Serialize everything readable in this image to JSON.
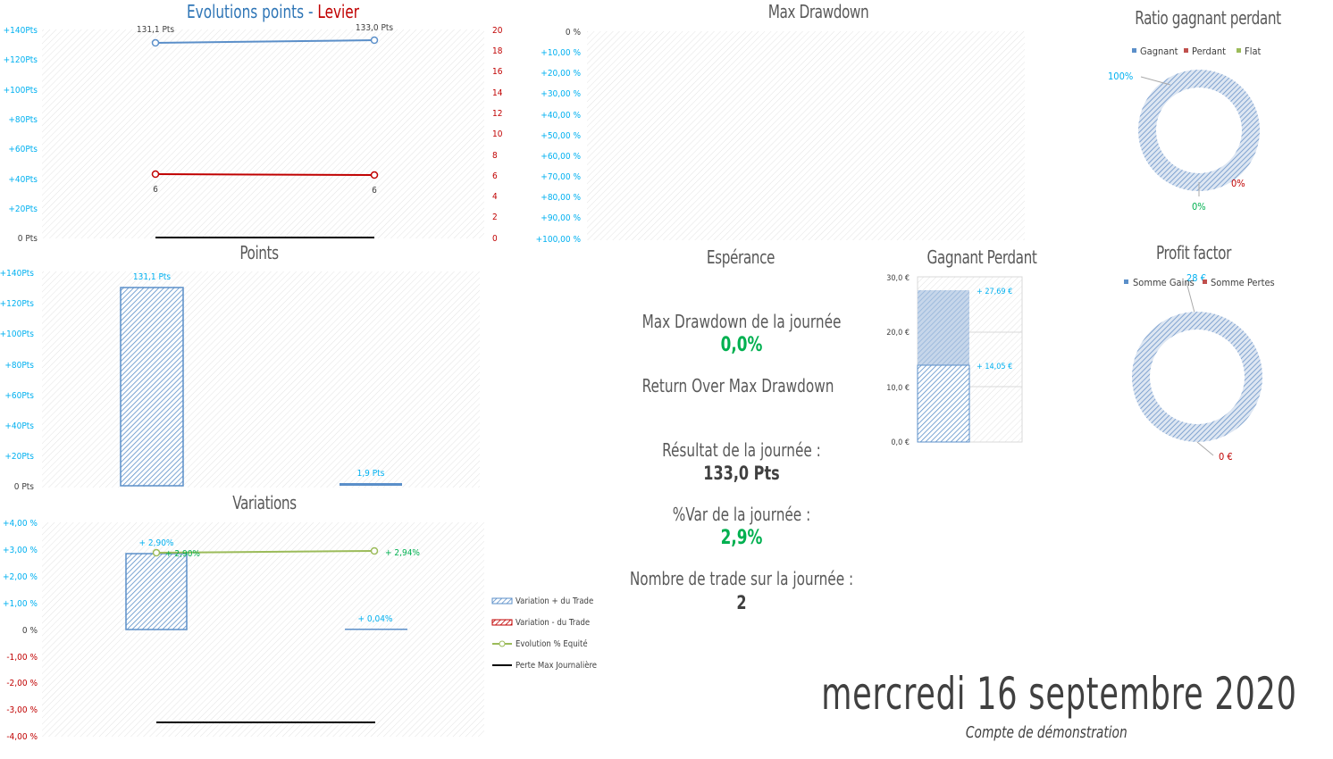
{
  "colors": {
    "blue": "#5B8FC9",
    "red": "#C00000",
    "green": "#00B050",
    "olive": "#9BBB59",
    "cyan": "#00B0F0",
    "grey_text": "#595959"
  },
  "evolution": {
    "title_a": "Evolutions points",
    "title_sep": " - ",
    "title_b": "Levier",
    "y_left_ticks": [
      "+140Pts",
      "+120Pts",
      "+100Pts",
      "+80Pts",
      "+60Pts",
      "+40Pts",
      "+20Pts",
      "0 Pts"
    ],
    "y_right_ticks": [
      "20",
      "18",
      "16",
      "14",
      "12",
      "10",
      "8",
      "6",
      "4",
      "2",
      "0"
    ],
    "point_labels": [
      "131,1 Pts",
      "133,0 Pts"
    ],
    "levier_labels": [
      "6",
      "6"
    ]
  },
  "points": {
    "title": "Points",
    "y_ticks": [
      "+140Pts",
      "+120Pts",
      "+100Pts",
      "+80Pts",
      "+60Pts",
      "+40Pts",
      "+20Pts",
      "0 Pts"
    ],
    "bar_labels": [
      "131,1 Pts",
      "1,9 Pts"
    ]
  },
  "variations": {
    "title": "Variations",
    "y_ticks": [
      "+4,00 %",
      "+3,00 %",
      "+2,00 %",
      "+1,00 %",
      "0 %",
      "-1,00 %",
      "-2,00 %",
      "-3,00 %",
      "-4,00 %"
    ],
    "bar_labels": [
      "+ 2,90%",
      "+ 0,04%"
    ],
    "line_labels": [
      "+ 2,90%",
      "+ 2,94%"
    ],
    "legend": [
      "Variation + du Trade",
      "Variation - du Trade",
      "Evolution % Equité",
      "Perte Max Journalière"
    ]
  },
  "drawdown": {
    "title": "Max Drawdown",
    "y_ticks": [
      "0 %",
      "+10,00 %",
      "+20,00 %",
      "+30,00 %",
      "+40,00 %",
      "+50,00 %",
      "+60,00 %",
      "+70,00 %",
      "+80,00 %",
      "+90,00 %",
      "+100,00 %"
    ]
  },
  "ratio": {
    "title": "Ratio gagnant perdant",
    "legend": [
      "Gagnant",
      "Perdant",
      "Flat"
    ],
    "labels": [
      "100%",
      "0%",
      "0%"
    ]
  },
  "profit": {
    "title": "Profit factor",
    "legend": [
      "Somme Gains",
      "Somme Pertes"
    ],
    "labels": [
      "28 €",
      "0 €"
    ]
  },
  "gp": {
    "title": "Gagnant Perdant",
    "y_ticks": [
      "30,0 €",
      "20,0 €",
      "10,0 €",
      "0,0 €"
    ],
    "labels": [
      "+ 27,69 €",
      "+ 14,05 €"
    ]
  },
  "kpi": {
    "esperance": "Espérance",
    "mdd_label": "Max Drawdown de la journée",
    "mdd_value": "0,0%",
    "romd_label": "Return Over Max Drawdown",
    "result_label": "Résultat de la journée :",
    "result_value": "133,0 Pts",
    "var_label": "%Var de la journée :",
    "var_value": "2,9%",
    "trades_label": "Nombre de trade sur la journée :",
    "trades_value": "2"
  },
  "footer": {
    "date": "mercredi 16 septembre 2020",
    "account": "Compte de démonstration"
  }
}
